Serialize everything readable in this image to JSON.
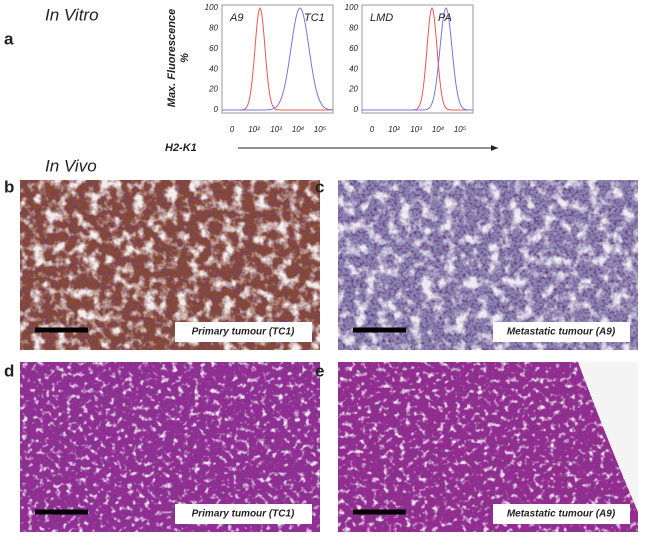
{
  "panel_a": {
    "label": "a",
    "section_title": "In Vitro",
    "y_axis_label": [
      "Max. Fluorescence",
      "%"
    ],
    "x_axis_label": "H2-K1",
    "histograms": [
      {
        "labels": [
          "A9",
          "TC1"
        ],
        "yticks": [
          100,
          80,
          60,
          40,
          20,
          0
        ],
        "xticks": [
          "0",
          "10²",
          "10³",
          "10⁴",
          "10⁵"
        ]
      },
      {
        "labels": [
          "LMD",
          "PA"
        ],
        "yticks": [
          100,
          80,
          60,
          40,
          20,
          0
        ],
        "xticks": [
          "0",
          "10²",
          "10³",
          "10⁴",
          "10⁵"
        ]
      }
    ]
  },
  "in_vivo_title": "In Vivo",
  "panels": [
    {
      "label": "b",
      "caption": "Primary tumour (TC1)"
    },
    {
      "label": "c",
      "caption": "Metastatic tumour (A9)"
    },
    {
      "label": "d",
      "caption": "Primary tumour (TC1)"
    },
    {
      "label": "e",
      "caption": "Metastatic tumour (A9)"
    }
  ]
}
